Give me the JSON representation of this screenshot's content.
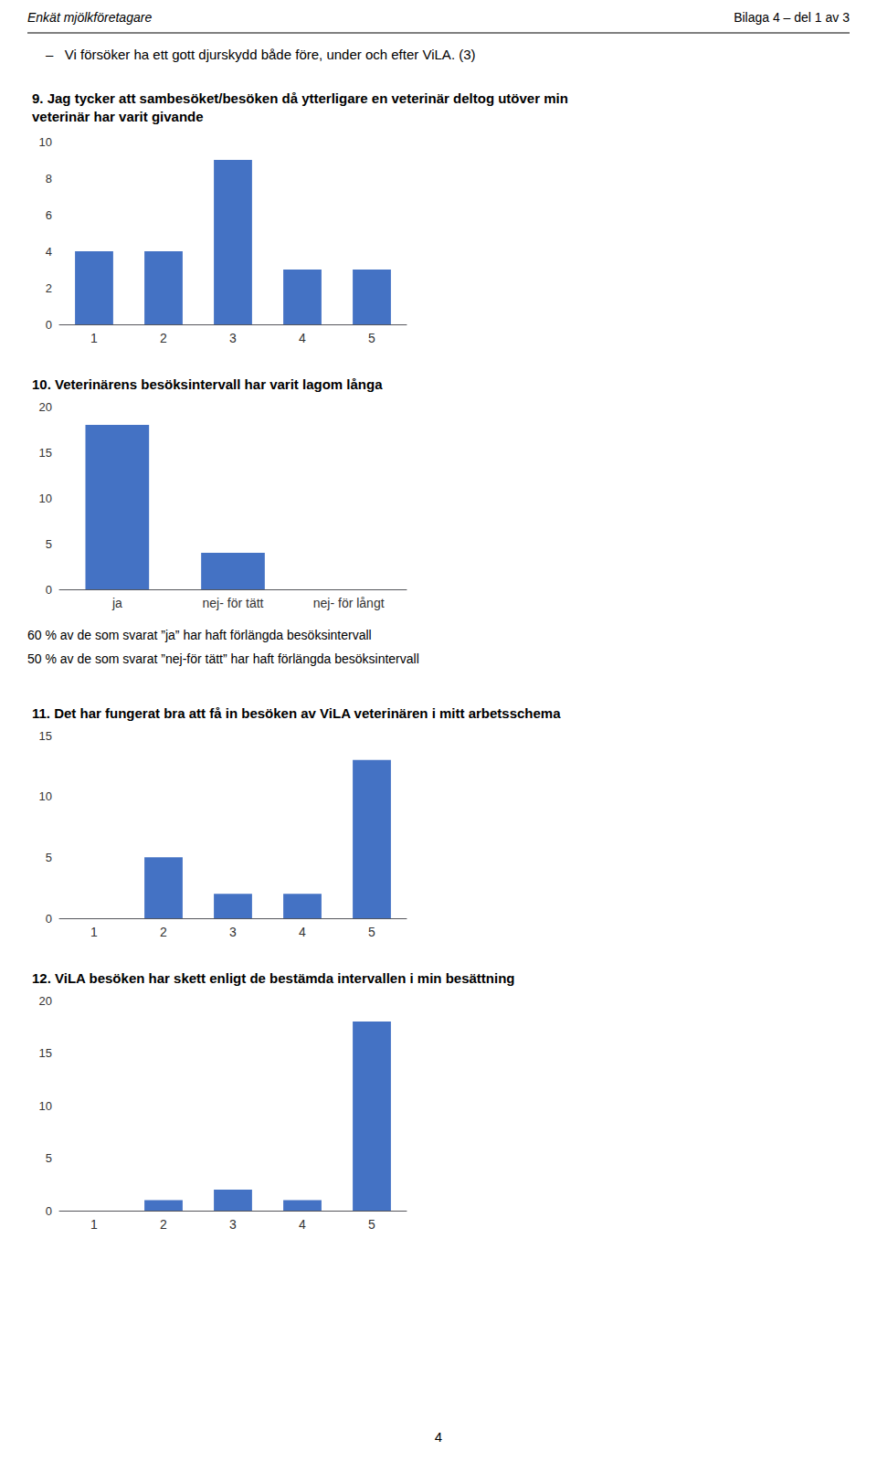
{
  "annotations": [
    "Enkät mjölkföretagare",
    "Bilaga 4 – del 1 av 3",
    "–   Vi försöker ha ett gott djurskydd både före, under och efter ViLA. (3)",
    "4"
  ],
  "chart_data": [
    {
      "type": "bar",
      "title": "9. Jag tycker att sambesöket/besöken då ytterligare en veterinär deltog utöver min\nveterinär har varit givande",
      "categories": [
        "1",
        "2",
        "3",
        "4",
        "5"
      ],
      "values": [
        4,
        4,
        9,
        3,
        3
      ],
      "color": "#4472C4",
      "ylim": [
        0,
        10
      ],
      "yticks": [
        0,
        2,
        4,
        6,
        8,
        10
      ],
      "grid": false
    },
    {
      "type": "bar",
      "title": "10. Veterinärens besöksintervall har varit lagom långa",
      "categories": [
        "ja",
        "nej- för tätt",
        "nej- för långt"
      ],
      "values": [
        18,
        4,
        0
      ],
      "color": "#4472C4",
      "ylim": [
        0,
        20
      ],
      "yticks": [
        0,
        5,
        10,
        15,
        20
      ],
      "grid": false,
      "annotations": [
        "60 % av de som svarat ”ja” har haft förlängda besöksintervall",
        "50 % av de som svarat ”nej-för tätt” har haft förlängda besöksintervall"
      ]
    },
    {
      "type": "bar",
      "title": "11. Det har fungerat bra att få in besöken av ViLA veterinären i mitt arbetsschema",
      "categories": [
        "1",
        "2",
        "3",
        "4",
        "5"
      ],
      "values": [
        0,
        5,
        2,
        2,
        13
      ],
      "color": "#4472C4",
      "ylim": [
        0,
        15
      ],
      "yticks": [
        0,
        5,
        10,
        15
      ],
      "grid": false
    },
    {
      "type": "bar",
      "title": "12. ViLA besöken har skett enligt de bestämda intervallen i min besättning",
      "categories": [
        "1",
        "2",
        "3",
        "4",
        "5"
      ],
      "values": [
        0,
        1,
        2,
        1,
        18
      ],
      "color": "#4472C4",
      "ylim": [
        0,
        20
      ],
      "yticks": [
        0,
        5,
        10,
        15,
        20
      ],
      "grid": false
    }
  ]
}
